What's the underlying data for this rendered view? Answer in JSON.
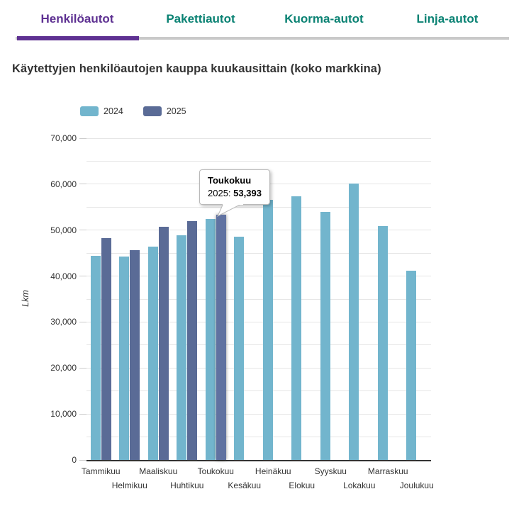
{
  "tabs": {
    "items": [
      {
        "label": "Henkilöautot",
        "active": true
      },
      {
        "label": "Pakettiautot",
        "active": false
      },
      {
        "label": "Kuorma-autot",
        "active": false
      },
      {
        "label": "Linja-autot",
        "active": false
      }
    ]
  },
  "page": {
    "title": "Käytettyjen henkilöautojen kauppa kuukausittain (koko markkina)"
  },
  "chart_data": {
    "type": "bar",
    "title": "Käytettyjen henkilöautojen kauppa kuukausittain (koko markkina)",
    "xlabel": "",
    "ylabel": "Lkm",
    "ylim": [
      0,
      70000
    ],
    "y_label_step": 10000,
    "gridline_step": 5000,
    "grid": true,
    "legend_position": "top",
    "categories": [
      "Tammikuu",
      "Helmikuu",
      "Maaliskuu",
      "Huhtikuu",
      "Toukokuu",
      "Kesäkuu",
      "Heinäkuu",
      "Elokuu",
      "Syyskuu",
      "Lokakuu",
      "Marraskuu",
      "Joulukuu"
    ],
    "series": [
      {
        "name": "2024",
        "color": "#72b5cd",
        "values": [
          44400,
          44200,
          46400,
          48900,
          52400,
          48500,
          56600,
          57400,
          54000,
          60200,
          50900,
          41200
        ]
      },
      {
        "name": "2025",
        "color": "#5a6b96",
        "values": [
          48200,
          45600,
          50800,
          52000,
          53393,
          null,
          null,
          null,
          null,
          null,
          null,
          null
        ]
      }
    ],
    "hover_point": {
      "series_index": 1,
      "point_index": 4
    }
  },
  "tooltip": {
    "title": "Toukokuu",
    "series_label": "2025:",
    "value": "53,393"
  },
  "colors": {
    "tab_active": "#5e3192",
    "tab_inactive": "#0a8273",
    "tab_rule": "#c9c9c9",
    "grid": "#e6e6e6",
    "axis": "#333333",
    "text": "#333333",
    "title_text": "#32363f"
  }
}
